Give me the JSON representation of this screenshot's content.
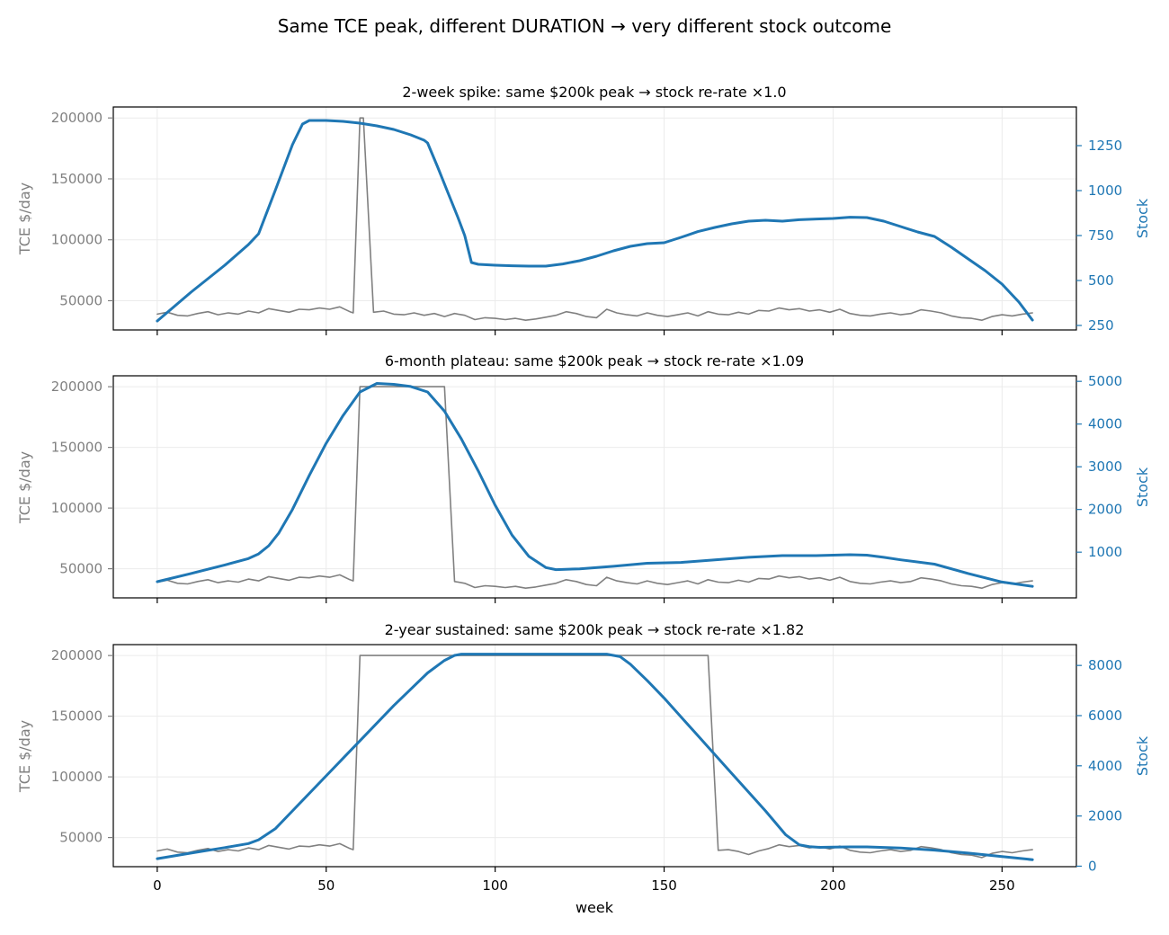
{
  "figure_title": "Same TCE peak, different DURATION → very different stock outcome",
  "shared_xlabel": "week",
  "colors": {
    "tce": "#808080",
    "stock": "#1f77b4",
    "axis": "#000000",
    "grid": "#ebebeb"
  },
  "chart_data": [
    {
      "type": "line",
      "title": "2-week spike: same $200k peak → stock re-rate ×1.0",
      "xlabel": "week",
      "ylabel_left": "TCE $/day",
      "ylabel_right": "Stock",
      "xlim": [
        -13,
        272
      ],
      "xticks": [
        0,
        50,
        100,
        150,
        200,
        250
      ],
      "ylim_left": [
        26000,
        209000
      ],
      "yticks_left": [
        50000,
        100000,
        150000,
        200000
      ],
      "ylim_right": [
        225,
        1465
      ],
      "yticks_right": [
        250,
        500,
        750,
        1000,
        1250
      ],
      "grid": true,
      "series": [
        {
          "axis": "left",
          "color": "#808080",
          "x": [
            0,
            3,
            6,
            9,
            12,
            15,
            18,
            21,
            24,
            27,
            30,
            33,
            36,
            39,
            42,
            45,
            48,
            51,
            54,
            57,
            58,
            60,
            61,
            64,
            67,
            70,
            73,
            76,
            79,
            82,
            85,
            88,
            91,
            94,
            97,
            100,
            103,
            106,
            109,
            112,
            115,
            118,
            121,
            124,
            127,
            130,
            133,
            136,
            139,
            142,
            145,
            148,
            151,
            154,
            157,
            160,
            163,
            166,
            169,
            172,
            175,
            178,
            181,
            184,
            187,
            190,
            193,
            196,
            199,
            202,
            205,
            208,
            211,
            214,
            217,
            220,
            223,
            226,
            229,
            232,
            235,
            238,
            241,
            244,
            247,
            250,
            253,
            256,
            259
          ],
          "y": [
            39000,
            40500,
            38000,
            37500,
            39500,
            41000,
            38500,
            40000,
            39000,
            41500,
            40000,
            43500,
            42000,
            40500,
            43000,
            42500,
            44000,
            43000,
            45000,
            41000,
            40000,
            200000,
            200000,
            40500,
            41500,
            39000,
            38500,
            40000,
            38000,
            39500,
            37000,
            39500,
            38000,
            34500,
            36000,
            35500,
            34500,
            35500,
            34000,
            35000,
            36500,
            38000,
            41000,
            39500,
            37000,
            36000,
            43000,
            40000,
            38500,
            37500,
            40000,
            38000,
            37000,
            38500,
            40000,
            37500,
            41000,
            39000,
            38500,
            40500,
            39000,
            42000,
            41500,
            44000,
            42500,
            43500,
            41500,
            42500,
            40500,
            43000,
            39500,
            38000,
            37500,
            39000,
            40000,
            38500,
            39500,
            42500,
            41500,
            40000,
            37500,
            36000,
            35500,
            34000,
            37000,
            38500,
            37500,
            39000,
            40000
          ]
        },
        {
          "axis": "right",
          "color": "#1f77b4",
          "x": [
            0,
            10,
            20,
            27,
            30,
            35,
            40,
            43,
            45,
            50,
            55,
            60,
            65,
            70,
            75,
            79,
            80,
            83,
            86,
            89,
            91,
            93,
            95,
            100,
            105,
            110,
            115,
            120,
            125,
            130,
            135,
            140,
            145,
            150,
            155,
            160,
            165,
            170,
            175,
            180,
            185,
            190,
            195,
            200,
            205,
            210,
            215,
            220,
            225,
            230,
            235,
            240,
            245,
            250,
            255,
            259
          ],
          "y": [
            275,
            435,
            585,
            700,
            760,
            1005,
            1255,
            1370,
            1390,
            1390,
            1385,
            1375,
            1360,
            1340,
            1310,
            1280,
            1265,
            1130,
            990,
            850,
            750,
            600,
            590,
            585,
            582,
            580,
            580,
            592,
            610,
            635,
            665,
            690,
            705,
            710,
            740,
            772,
            795,
            815,
            830,
            835,
            830,
            838,
            842,
            845,
            852,
            850,
            830,
            800,
            770,
            745,
            685,
            620,
            555,
            480,
            380,
            280
          ]
        }
      ]
    },
    {
      "type": "line",
      "title": "6-month plateau: same $200k peak → stock re-rate ×1.09",
      "xlabel": "week",
      "ylabel_left": "TCE $/day",
      "ylabel_right": "Stock",
      "xlim": [
        -13,
        272
      ],
      "xticks": [
        0,
        50,
        100,
        150,
        200,
        250
      ],
      "ylim_left": [
        26000,
        209000
      ],
      "yticks_left": [
        50000,
        100000,
        150000,
        200000
      ],
      "ylim_right": [
        -70,
        5130
      ],
      "yticks_right": [
        1000,
        2000,
        3000,
        4000,
        5000
      ],
      "grid": true,
      "series": [
        {
          "axis": "left",
          "color": "#808080",
          "x": [
            0,
            3,
            6,
            9,
            12,
            15,
            18,
            21,
            24,
            27,
            30,
            33,
            36,
            39,
            42,
            45,
            48,
            51,
            54,
            57,
            58,
            60,
            85,
            88,
            91,
            94,
            97,
            100,
            103,
            106,
            109,
            112,
            115,
            118,
            121,
            124,
            127,
            130,
            133,
            136,
            139,
            142,
            145,
            148,
            151,
            154,
            157,
            160,
            163,
            166,
            169,
            172,
            175,
            178,
            181,
            184,
            187,
            190,
            193,
            196,
            199,
            202,
            205,
            208,
            211,
            214,
            217,
            220,
            223,
            226,
            229,
            232,
            235,
            238,
            241,
            244,
            247,
            250,
            253,
            256,
            259
          ],
          "y": [
            39000,
            40500,
            38000,
            37500,
            39500,
            41000,
            38500,
            40000,
            39000,
            41500,
            40000,
            43500,
            42000,
            40500,
            43000,
            42500,
            44000,
            43000,
            45000,
            41000,
            40000,
            200000,
            200000,
            39500,
            38000,
            34500,
            36000,
            35500,
            34500,
            35500,
            34000,
            35000,
            36500,
            38000,
            41000,
            39500,
            37000,
            36000,
            43000,
            40000,
            38500,
            37500,
            40000,
            38000,
            37000,
            38500,
            40000,
            37500,
            41000,
            39000,
            38500,
            40500,
            39000,
            42000,
            41500,
            44000,
            42500,
            43500,
            41500,
            42500,
            40500,
            43000,
            39500,
            38000,
            37500,
            39000,
            40000,
            38500,
            39500,
            42500,
            41500,
            40000,
            37500,
            36000,
            35500,
            34000,
            37000,
            38500,
            37500,
            39000,
            40000
          ]
        },
        {
          "axis": "right",
          "color": "#1f77b4",
          "x": [
            0,
            10,
            20,
            27,
            30,
            33,
            36,
            40,
            45,
            50,
            55,
            60,
            65,
            70,
            75,
            80,
            85,
            90,
            95,
            100,
            105,
            110,
            115,
            118,
            125,
            135,
            145,
            155,
            165,
            175,
            185,
            195,
            205,
            210,
            215,
            220,
            230,
            240,
            250,
            259
          ],
          "y": [
            310,
            500,
            700,
            850,
            960,
            1150,
            1450,
            2000,
            2800,
            3550,
            4200,
            4750,
            4950,
            4930,
            4880,
            4750,
            4300,
            3650,
            2900,
            2100,
            1400,
            900,
            640,
            590,
            610,
            670,
            740,
            760,
            820,
            880,
            920,
            920,
            940,
            930,
            880,
            820,
            720,
            500,
            300,
            200
          ]
        }
      ]
    },
    {
      "type": "line",
      "title": "2-year sustained: same $200k peak → stock re-rate ×1.82",
      "xlabel": "week",
      "ylabel_left": "TCE $/day",
      "ylabel_right": "Stock",
      "xlim": [
        -13,
        272
      ],
      "xticks": [
        0,
        50,
        100,
        150,
        200,
        250
      ],
      "ylim_left": [
        26000,
        209000
      ],
      "yticks_left": [
        50000,
        100000,
        150000,
        200000
      ],
      "ylim_right": [
        -20,
        8830
      ],
      "yticks_right": [
        0,
        2000,
        4000,
        6000,
        8000
      ],
      "grid": true,
      "series": [
        {
          "axis": "left",
          "color": "#808080",
          "x": [
            0,
            3,
            6,
            9,
            12,
            15,
            18,
            21,
            24,
            27,
            30,
            33,
            36,
            39,
            42,
            45,
            48,
            51,
            54,
            57,
            58,
            60,
            163,
            166,
            169,
            172,
            175,
            178,
            181,
            184,
            187,
            190,
            193,
            196,
            199,
            202,
            205,
            208,
            211,
            214,
            217,
            220,
            223,
            226,
            229,
            232,
            235,
            238,
            241,
            244,
            247,
            250,
            253,
            256,
            259
          ],
          "y": [
            39000,
            40500,
            38000,
            37500,
            39500,
            41000,
            38500,
            40000,
            39000,
            41500,
            40000,
            43500,
            42000,
            40500,
            43000,
            42500,
            44000,
            43000,
            45000,
            41000,
            40000,
            200000,
            200000,
            39500,
            40000,
            38500,
            36000,
            39000,
            41000,
            44000,
            42500,
            43500,
            41500,
            42500,
            40500,
            43000,
            39500,
            38000,
            37500,
            39000,
            40000,
            38500,
            39500,
            42500,
            41500,
            40000,
            37500,
            36000,
            35500,
            33500,
            37000,
            38500,
            37500,
            39000,
            40000
          ]
        },
        {
          "axis": "right",
          "color": "#1f77b4",
          "x": [
            0,
            10,
            20,
            27,
            30,
            35,
            40,
            50,
            60,
            70,
            80,
            85,
            88,
            90,
            95,
            100,
            110,
            120,
            130,
            133,
            137,
            140,
            145,
            150,
            160,
            170,
            180,
            186,
            190,
            193,
            196,
            200,
            205,
            210,
            220,
            230,
            240,
            250,
            259
          ],
          "y": [
            300,
            520,
            740,
            900,
            1050,
            1500,
            2200,
            3600,
            5000,
            6400,
            7700,
            8200,
            8400,
            8450,
            8450,
            8450,
            8450,
            8450,
            8450,
            8450,
            8350,
            8050,
            7400,
            6700,
            5200,
            3700,
            2200,
            1250,
            850,
            780,
            750,
            760,
            770,
            770,
            720,
            640,
            520,
            380,
            260
          ]
        }
      ]
    }
  ]
}
